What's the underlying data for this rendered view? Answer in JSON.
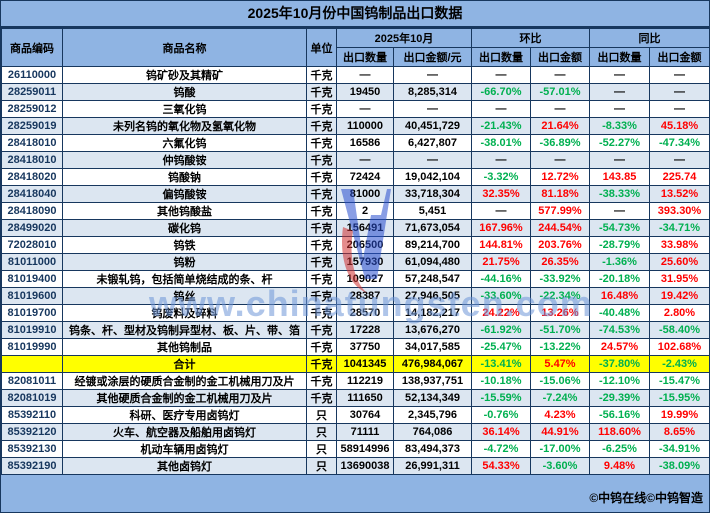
{
  "watermark": {
    "text": "www.chinatungsten.com"
  },
  "footer": {
    "credit": "©中钨在线©中钨智造"
  },
  "colors": {
    "page_blue": "#8FB4E3",
    "row_shade_blue": "#DCE6F1",
    "total_yellow": "#FFFF00",
    "positive_red": "#FF0000",
    "negative_green": "#00B050",
    "border_navy": "#17375E"
  },
  "chart_data": {
    "type": "table",
    "title": "2025年10月份中国钨制品出口数据",
    "column_groups": [
      {
        "label": "2025年10月",
        "span": 2
      },
      {
        "label": "环比",
        "span": 2
      },
      {
        "label": "同比",
        "span": 2
      }
    ],
    "columns": [
      "商品编码",
      "商品名称",
      "单位",
      "出口数量",
      "出口金额/元",
      "出口数量",
      "出口金额",
      "出口数量",
      "出口金额"
    ],
    "rows": [
      {
        "code": "26110000",
        "name": "钨矿砂及其精矿",
        "unit": "千克",
        "qty": "—",
        "amount": "—",
        "mom_qty": "—",
        "mom_amount": "—",
        "yoy_qty": "—",
        "yoy_amount": "—",
        "total": false
      },
      {
        "code": "28259011",
        "name": "钨酸",
        "unit": "千克",
        "qty": "19450",
        "amount": "8,285,314",
        "mom_qty": "-66.70%",
        "mom_amount": "-57.01%",
        "yoy_qty": "—",
        "yoy_amount": "—",
        "total": false
      },
      {
        "code": "28259012",
        "name": "三氧化钨",
        "unit": "千克",
        "qty": "—",
        "amount": "—",
        "mom_qty": "—",
        "mom_amount": "—",
        "yoy_qty": "—",
        "yoy_amount": "—",
        "total": false
      },
      {
        "code": "28259019",
        "name": "未列名钨的氧化物及氢氧化物",
        "unit": "千克",
        "qty": "110000",
        "amount": "40,451,729",
        "mom_qty": "-21.43%",
        "mom_amount": "21.64%",
        "yoy_qty": "-8.33%",
        "yoy_amount": "45.18%",
        "total": false
      },
      {
        "code": "28418010",
        "name": "六氟化钨",
        "unit": "千克",
        "qty": "16586",
        "amount": "6,427,807",
        "mom_qty": "-38.01%",
        "mom_amount": "-36.89%",
        "yoy_qty": "-52.27%",
        "yoy_amount": "-47.34%",
        "total": false
      },
      {
        "code": "28418010",
        "name": "仲钨酸铵",
        "unit": "千克",
        "qty": "—",
        "amount": "—",
        "mom_qty": "—",
        "mom_amount": "—",
        "yoy_qty": "—",
        "yoy_amount": "—",
        "total": false
      },
      {
        "code": "28418020",
        "name": "钨酸钠",
        "unit": "千克",
        "qty": "72424",
        "amount": "19,042,104",
        "mom_qty": "-3.32%",
        "mom_amount": "12.72%",
        "yoy_qty": "143.85",
        "yoy_amount": "225.74",
        "total": false
      },
      {
        "code": "28418040",
        "name": "偏钨酸铵",
        "unit": "千克",
        "qty": "81000",
        "amount": "33,718,304",
        "mom_qty": "32.35%",
        "mom_amount": "81.18%",
        "yoy_qty": "-38.33%",
        "yoy_amount": "13.52%",
        "total": false
      },
      {
        "code": "28418090",
        "name": "其他钨酸盐",
        "unit": "千克",
        "qty": "2",
        "amount": "5,451",
        "mom_qty": "—",
        "mom_amount": "577.99%",
        "yoy_qty": "—",
        "yoy_amount": "393.30%",
        "total": false
      },
      {
        "code": "28499020",
        "name": "碳化钨",
        "unit": "千克",
        "qty": "156491",
        "amount": "71,673,054",
        "mom_qty": "167.96%",
        "mom_amount": "244.54%",
        "yoy_qty": "-54.73%",
        "yoy_amount": "-34.71%",
        "total": false
      },
      {
        "code": "72028010",
        "name": "钨铁",
        "unit": "千克",
        "qty": "206500",
        "amount": "89,214,700",
        "mom_qty": "144.81%",
        "mom_amount": "203.76%",
        "yoy_qty": "-28.79%",
        "yoy_amount": "33.98%",
        "total": false
      },
      {
        "code": "81011000",
        "name": "钨粉",
        "unit": "千克",
        "qty": "157930",
        "amount": "61,094,480",
        "mom_qty": "21.75%",
        "mom_amount": "26.35%",
        "yoy_qty": "-1.36%",
        "yoy_amount": "25.60%",
        "total": false
      },
      {
        "code": "81019400",
        "name": "未锻轧钨，包括简单烧结成的条、杆",
        "unit": "千克",
        "qty": "109027",
        "amount": "57,248,547",
        "mom_qty": "-44.16%",
        "mom_amount": "-33.92%",
        "yoy_qty": "-20.18%",
        "yoy_amount": "31.95%",
        "total": false
      },
      {
        "code": "81019600",
        "name": "钨丝",
        "unit": "千克",
        "qty": "28387",
        "amount": "27,946,505",
        "mom_qty": "-33.60%",
        "mom_amount": "-22.34%",
        "yoy_qty": "16.48%",
        "yoy_amount": "19.42%",
        "total": false
      },
      {
        "code": "81019700",
        "name": "钨废料及碎料",
        "unit": "千克",
        "qty": "28570",
        "amount": "14,182,217",
        "mom_qty": "24.22%",
        "mom_amount": "13.26%",
        "yoy_qty": "-40.48%",
        "yoy_amount": "2.80%",
        "total": false
      },
      {
        "code": "81019910",
        "name": "钨条、杆、型材及钨制异型材、板、片、带、箔",
        "unit": "千克",
        "qty": "17228",
        "amount": "13,676,270",
        "mom_qty": "-61.92%",
        "mom_amount": "-51.70%",
        "yoy_qty": "-74.53%",
        "yoy_amount": "-58.40%",
        "total": false
      },
      {
        "code": "81019990",
        "name": "其他钨制品",
        "unit": "千克",
        "qty": "37750",
        "amount": "34,017,585",
        "mom_qty": "-25.47%",
        "mom_amount": "-13.22%",
        "yoy_qty": "24.57%",
        "yoy_amount": "102.68%",
        "total": false
      },
      {
        "code": "",
        "name": "合计",
        "unit": "千克",
        "qty": "1041345",
        "amount": "476,984,067",
        "mom_qty": "-13.41%",
        "mom_amount": "5.47%",
        "yoy_qty": "-37.80%",
        "yoy_amount": "-2.43%",
        "total": true
      },
      {
        "code": "82081011",
        "name": "经镀或涂层的硬质合金制的金工机械用刀及片",
        "unit": "千克",
        "qty": "112219",
        "amount": "138,937,751",
        "mom_qty": "-10.18%",
        "mom_amount": "-15.06%",
        "yoy_qty": "-12.10%",
        "yoy_amount": "-15.47%",
        "total": false
      },
      {
        "code": "82081019",
        "name": "其他硬质合金制的金工机械用刀及片",
        "unit": "千克",
        "qty": "111650",
        "amount": "52,134,349",
        "mom_qty": "-15.59%",
        "mom_amount": "-7.24%",
        "yoy_qty": "-29.39%",
        "yoy_amount": "-15.95%",
        "total": false
      },
      {
        "code": "85392110",
        "name": "科研、医疗专用卤钨灯",
        "unit": "只",
        "qty": "30764",
        "amount": "2,345,796",
        "mom_qty": "-0.76%",
        "mom_amount": "4.23%",
        "yoy_qty": "-56.16%",
        "yoy_amount": "19.99%",
        "total": false
      },
      {
        "code": "85392120",
        "name": "火车、航空器及船舶用卤钨灯",
        "unit": "只",
        "qty": "71111",
        "amount": "764,086",
        "mom_qty": "36.14%",
        "mom_amount": "44.91%",
        "yoy_qty": "118.60%",
        "yoy_amount": "8.65%",
        "total": false
      },
      {
        "code": "85392130",
        "name": "机动车辆用卤钨灯",
        "unit": "只",
        "qty": "58914996",
        "amount": "83,494,373",
        "mom_qty": "-4.72%",
        "mom_amount": "-17.00%",
        "yoy_qty": "-6.25%",
        "yoy_amount": "-34.91%",
        "total": false
      },
      {
        "code": "85392190",
        "name": "其他卤钨灯",
        "unit": "只",
        "qty": "13690038",
        "amount": "26,991,311",
        "mom_qty": "54.33%",
        "mom_amount": "-3.60%",
        "yoy_qty": "9.48%",
        "yoy_amount": "-38.09%",
        "total": false
      }
    ]
  }
}
